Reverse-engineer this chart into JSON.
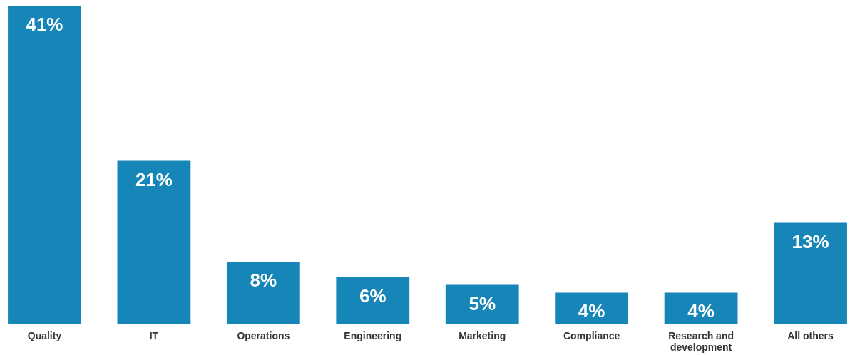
{
  "chart_data": {
    "type": "bar",
    "categories": [
      "Quality",
      "IT",
      "Operations",
      "Engineering",
      "Marketing",
      "Compliance",
      "Research and development",
      "All others"
    ],
    "values": [
      41,
      21,
      8,
      6,
      5,
      4,
      4,
      13
    ],
    "color": "#1686b8",
    "value_labels": [
      "41%",
      "21%",
      "8%",
      "6%",
      "5%",
      "4%",
      "4%",
      "13%"
    ]
  }
}
